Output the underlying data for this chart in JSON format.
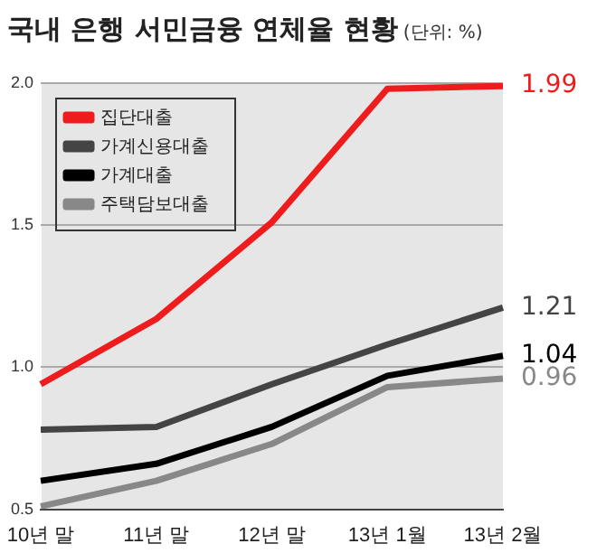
{
  "chart_data": {
    "type": "line",
    "title": "국내 은행 서민금융 연체율 현황",
    "subtitle": "(단위: %)",
    "categories": [
      "10년 말",
      "11년 말",
      "12년 말",
      "13년 1월",
      "13년 2월"
    ],
    "series": [
      {
        "name": "집단대출",
        "color": "#ee1c1c",
        "values": [
          0.94,
          1.17,
          1.51,
          1.98,
          1.99
        ],
        "value_labels": [
          null,
          null,
          null,
          null,
          "1.99"
        ]
      },
      {
        "name": "가계신용대출",
        "color": "#444444",
        "values": [
          0.78,
          0.79,
          0.94,
          1.08,
          1.21
        ],
        "value_labels": [
          null,
          null,
          null,
          null,
          "1.21"
        ]
      },
      {
        "name": "가계대출",
        "color": "#000000",
        "values": [
          0.6,
          0.66,
          0.79,
          0.97,
          1.04
        ],
        "value_labels": [
          null,
          null,
          null,
          null,
          "1.04"
        ]
      },
      {
        "name": "주택담보대출",
        "color": "#888888",
        "values": [
          0.51,
          0.6,
          0.73,
          0.93,
          0.96
        ],
        "value_labels": [
          null,
          null,
          null,
          null,
          "0.96"
        ]
      }
    ],
    "ylim": [
      0.5,
      2.0
    ],
    "yticks": [
      {
        "value": 0.5,
        "label": "0.5"
      },
      {
        "value": 1,
        "label": "1.0"
      },
      {
        "value": 1.5,
        "label": "1.5"
      },
      {
        "value": 2,
        "label": "2.0"
      }
    ],
    "grid": "y",
    "legend": "top left",
    "marker": "none",
    "line_style": "solid"
  }
}
